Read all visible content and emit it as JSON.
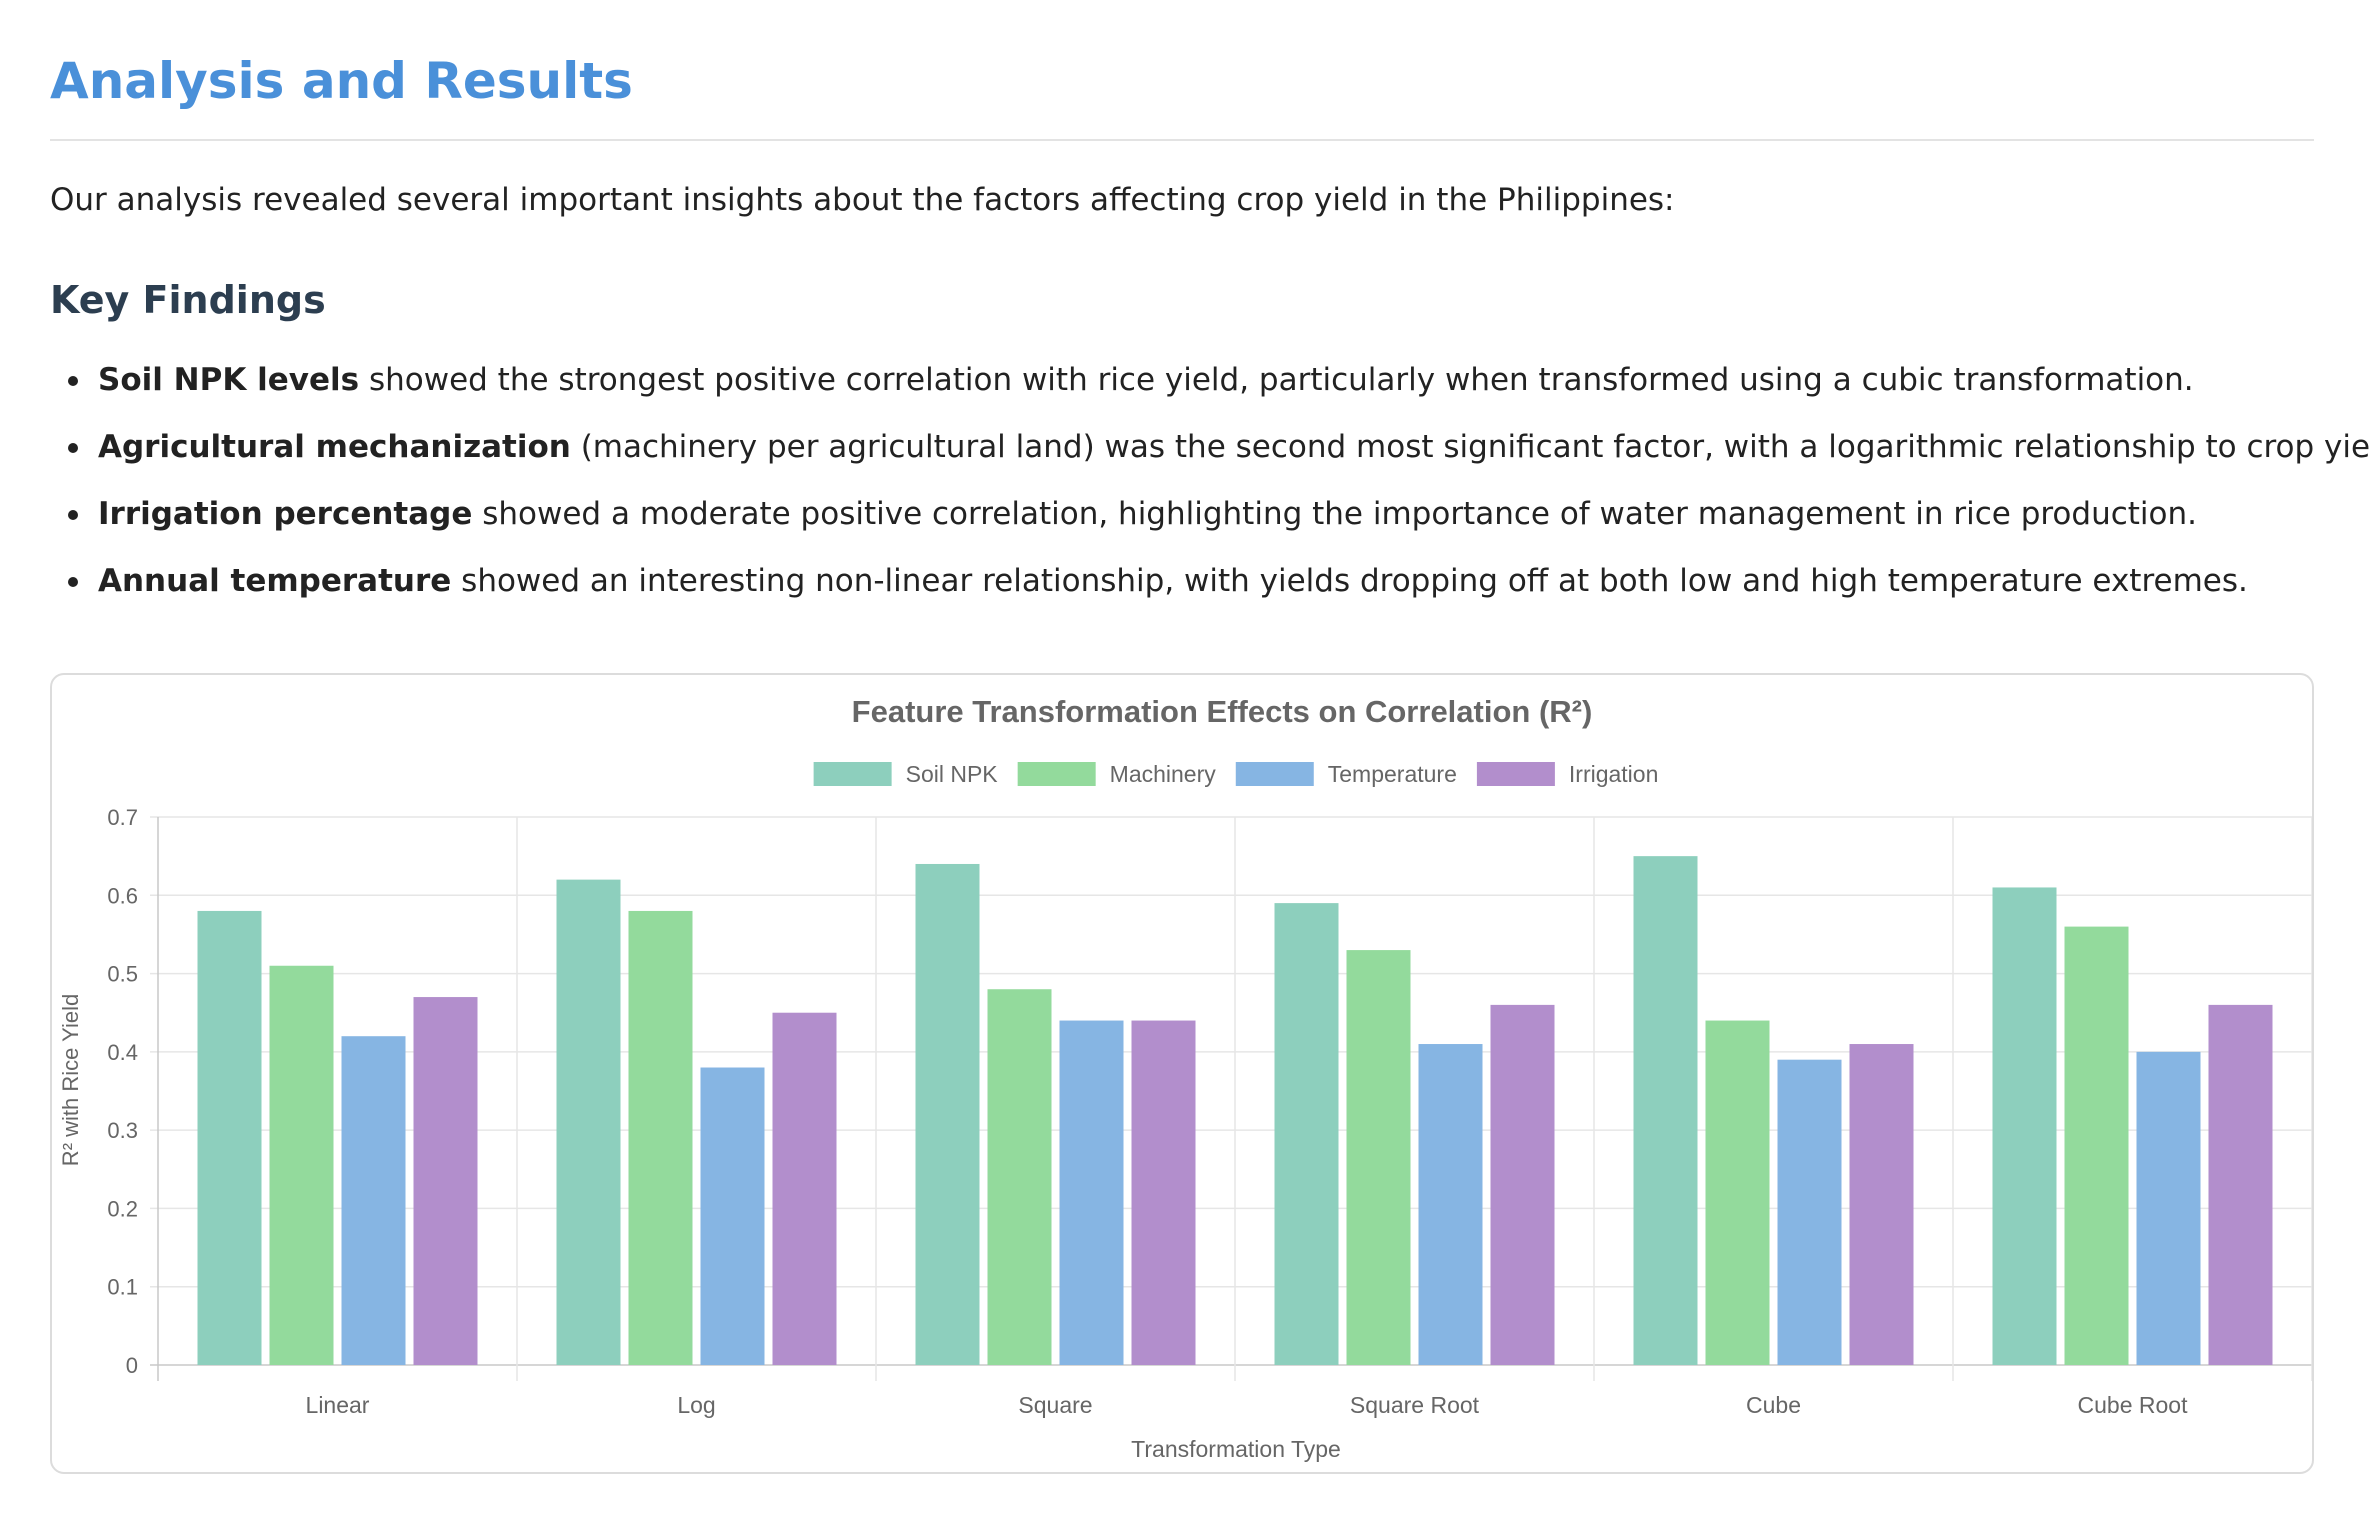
{
  "header": {
    "title": "Analysis and Results",
    "intro": "Our analysis revealed several important insights about the factors affecting crop yield in the Philippines:"
  },
  "key_findings": {
    "heading": "Key Findings",
    "items": [
      {
        "bold": "Soil NPK levels",
        "text": " showed the strongest positive correlation with rice yield, particularly when transformed using a cubic transformation."
      },
      {
        "bold": "Agricultural mechanization",
        "text": " (machinery per agricultural land) was the second most significant factor, with a logarithmic relationship to crop yield."
      },
      {
        "bold": "Irrigation percentage",
        "text": " showed a moderate positive correlation, highlighting the importance of water management in rice production."
      },
      {
        "bold": "Annual temperature",
        "text": " showed an interesting non-linear relationship, with yields dropping off at both low and high temperature extremes."
      }
    ]
  },
  "chart_data": {
    "type": "bar",
    "title": "Feature Transformation Effects on Correlation (R²)",
    "xlabel": "Transformation Type",
    "ylabel": "R² with Rice Yield",
    "categories": [
      "Linear",
      "Log",
      "Square",
      "Square Root",
      "Cube",
      "Cube Root"
    ],
    "ylim": [
      0,
      0.7
    ],
    "yticks": [
      0,
      0.1,
      0.2,
      0.3,
      0.4,
      0.5,
      0.6,
      0.7
    ],
    "grid": true,
    "legend_position": "top",
    "series": [
      {
        "name": "Soil NPK",
        "color": "#8dcfbd",
        "values": [
          0.58,
          0.62,
          0.64,
          0.59,
          0.65,
          0.61
        ]
      },
      {
        "name": "Machinery",
        "color": "#93da9c",
        "values": [
          0.51,
          0.58,
          0.48,
          0.53,
          0.44,
          0.56
        ]
      },
      {
        "name": "Temperature",
        "color": "#86b5e3",
        "values": [
          0.42,
          0.38,
          0.44,
          0.41,
          0.39,
          0.4
        ]
      },
      {
        "name": "Irrigation",
        "color": "#b28ecc",
        "values": [
          0.47,
          0.45,
          0.44,
          0.46,
          0.41,
          0.46
        ]
      }
    ]
  }
}
